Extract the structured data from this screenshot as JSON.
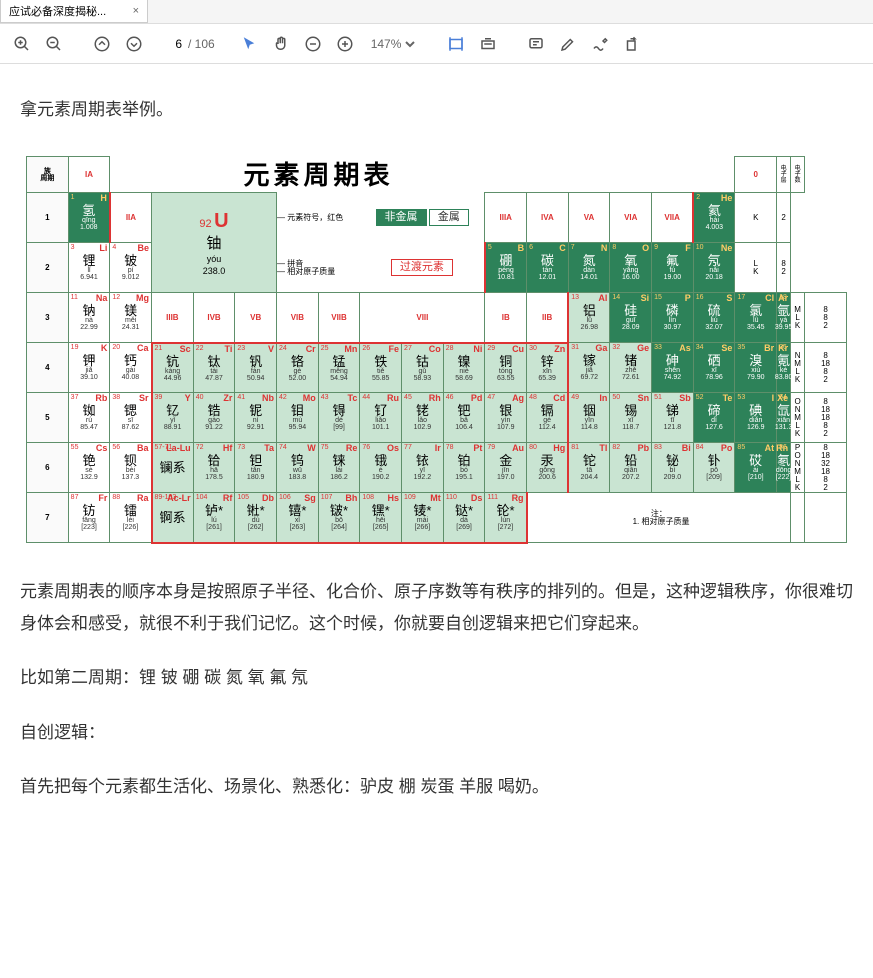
{
  "tab": {
    "title": "应试必备深度揭秘...",
    "close": "×"
  },
  "toolbar": {
    "page_current": "6",
    "page_total": "/ 106",
    "zoom": "147%"
  },
  "doc": {
    "p1": "拿元素周期表举例。",
    "p2": "元素周期表的顺序本身是按照原子半径、化合价、原子序数等有秩序的排列的。但是，这种逻辑秩序，你很难切身体会和感受，就很不利于我们记忆。这个时候，你就要自创逻辑来把它们穿起来。",
    "p3": "比如第二周期：锂 铍 硼 碳 氮 氧 氟 氖",
    "p4": "自创逻辑：",
    "p5": "首先把每个元素都生活化、场景化、熟悉化：驴皮 棚 炭蛋  羊服  喝奶。"
  },
  "ptable": {
    "title": "元素周期表",
    "groups_a": [
      "IA",
      "IIA",
      "IIIA",
      "IVA",
      "VA",
      "VIA",
      "VIIA"
    ],
    "groups_b": [
      "IIIB",
      "IVB",
      "VB",
      "VIB",
      "VIIB",
      "VIII",
      "IB",
      "IIB"
    ],
    "zero": "0",
    "sidehdr1": "电子层",
    "sidehdr2": "电子数",
    "periods": [
      "1",
      "2",
      "3",
      "4",
      "5",
      "6",
      "7"
    ],
    "phdr": "周期",
    "key": {
      "nonmetal": "非金属",
      "metal": "金属",
      "trans": "过渡元素"
    },
    "legend": {
      "atom": "原子",
      "num": "92",
      "sym": "U",
      "symred": "元素符号，红色",
      "elname": "元素名",
      "name": "铀",
      "nameanno": "称注*的是人造元素",
      "py": "yóu",
      "pyanno": "拼音",
      "mass": "238.0",
      "massanno": "相对原子质量"
    },
    "footnote": "注：\n1. 相对原子质量",
    "shells": {
      "1": "K 2",
      "2": "L K 8 2",
      "3": "M L K 8 8 2",
      "4": "N M L K 8 18 8 2",
      "5": "O N M L K 8 18 18 8 2",
      "6": "P O N M L K 8 18 32 18 8 2",
      "7": ""
    },
    "cells": {
      "H": {
        "n": "1",
        "s": "H",
        "nm": "氢",
        "py": "qīng",
        "m": "1.008",
        "c": "dark"
      },
      "He": {
        "n": "2",
        "s": "He",
        "nm": "氦",
        "py": "hài",
        "m": "4.003",
        "c": "dark"
      },
      "Li": {
        "n": "3",
        "s": "Li",
        "nm": "锂",
        "py": "lǐ",
        "m": "6.941",
        "c": "plain"
      },
      "Be": {
        "n": "4",
        "s": "Be",
        "nm": "铍",
        "py": "pí",
        "m": "9.012",
        "c": "plain"
      },
      "B": {
        "n": "5",
        "s": "B",
        "nm": "硼",
        "py": "péng",
        "m": "10.81",
        "c": "dark"
      },
      "C": {
        "n": "6",
        "s": "C",
        "nm": "碳",
        "py": "tàn",
        "m": "12.01",
        "c": "dark"
      },
      "N": {
        "n": "7",
        "s": "N",
        "nm": "氮",
        "py": "dàn",
        "m": "14.01",
        "c": "dark"
      },
      "O": {
        "n": "8",
        "s": "O",
        "nm": "氧",
        "py": "yǎng",
        "m": "16.00",
        "c": "dark"
      },
      "F": {
        "n": "9",
        "s": "F",
        "nm": "氟",
        "py": "fú",
        "m": "19.00",
        "c": "dark"
      },
      "Ne": {
        "n": "10",
        "s": "Ne",
        "nm": "氖",
        "py": "nǎi",
        "m": "20.18",
        "c": "dark"
      },
      "Na": {
        "n": "11",
        "s": "Na",
        "nm": "钠",
        "py": "nà",
        "m": "22.99",
        "c": "plain"
      },
      "Mg": {
        "n": "12",
        "s": "Mg",
        "nm": "镁",
        "py": "měi",
        "m": "24.31",
        "c": "plain"
      },
      "Al": {
        "n": "13",
        "s": "Al",
        "nm": "铝",
        "py": "lǚ",
        "m": "26.98",
        "c": "light"
      },
      "Si": {
        "n": "14",
        "s": "Si",
        "nm": "硅",
        "py": "guī",
        "m": "28.09",
        "c": "dark"
      },
      "P": {
        "n": "15",
        "s": "P",
        "nm": "磷",
        "py": "lín",
        "m": "30.97",
        "c": "dark"
      },
      "S": {
        "n": "16",
        "s": "S",
        "nm": "硫",
        "py": "liú",
        "m": "32.07",
        "c": "dark"
      },
      "Cl": {
        "n": "17",
        "s": "Cl",
        "nm": "氯",
        "py": "lǜ",
        "m": "35.45",
        "c": "dark"
      },
      "Ar": {
        "n": "18",
        "s": "Ar",
        "nm": "氩",
        "py": "yà",
        "m": "39.95",
        "c": "dark"
      },
      "K": {
        "n": "19",
        "s": "K",
        "nm": "钾",
        "py": "jiǎ",
        "m": "39.10",
        "c": "plain"
      },
      "Ca": {
        "n": "20",
        "s": "Ca",
        "nm": "钙",
        "py": "gài",
        "m": "40.08",
        "c": "plain"
      },
      "Sc": {
        "n": "21",
        "s": "Sc",
        "nm": "钪",
        "py": "kàng",
        "m": "44.96",
        "c": "light"
      },
      "Ti": {
        "n": "22",
        "s": "Ti",
        "nm": "钛",
        "py": "tài",
        "m": "47.87",
        "c": "light"
      },
      "V": {
        "n": "23",
        "s": "V",
        "nm": "钒",
        "py": "fán",
        "m": "50.94",
        "c": "light"
      },
      "Cr": {
        "n": "24",
        "s": "Cr",
        "nm": "铬",
        "py": "gè",
        "m": "52.00",
        "c": "light"
      },
      "Mn": {
        "n": "25",
        "s": "Mn",
        "nm": "锰",
        "py": "měng",
        "m": "54.94",
        "c": "light"
      },
      "Fe": {
        "n": "26",
        "s": "Fe",
        "nm": "铁",
        "py": "tiě",
        "m": "55.85",
        "c": "light"
      },
      "Co": {
        "n": "27",
        "s": "Co",
        "nm": "钴",
        "py": "gǔ",
        "m": "58.93",
        "c": "light"
      },
      "Ni": {
        "n": "28",
        "s": "Ni",
        "nm": "镍",
        "py": "niè",
        "m": "58.69",
        "c": "light"
      },
      "Cu": {
        "n": "29",
        "s": "Cu",
        "nm": "铜",
        "py": "tóng",
        "m": "63.55",
        "c": "light"
      },
      "Zn": {
        "n": "30",
        "s": "Zn",
        "nm": "锌",
        "py": "xīn",
        "m": "65.39",
        "c": "light"
      },
      "Ga": {
        "n": "31",
        "s": "Ga",
        "nm": "镓",
        "py": "jiā",
        "m": "69.72",
        "c": "light"
      },
      "Ge": {
        "n": "32",
        "s": "Ge",
        "nm": "锗",
        "py": "zhě",
        "m": "72.61",
        "c": "light"
      },
      "As": {
        "n": "33",
        "s": "As",
        "nm": "砷",
        "py": "shēn",
        "m": "74.92",
        "c": "dark"
      },
      "Se": {
        "n": "34",
        "s": "Se",
        "nm": "硒",
        "py": "xī",
        "m": "78.96",
        "c": "dark"
      },
      "Br": {
        "n": "35",
        "s": "Br",
        "nm": "溴",
        "py": "xiù",
        "m": "79.90",
        "c": "dark"
      },
      "Kr": {
        "n": "36",
        "s": "Kr",
        "nm": "氪",
        "py": "kè",
        "m": "83.80",
        "c": "dark"
      },
      "Rb": {
        "n": "37",
        "s": "Rb",
        "nm": "铷",
        "py": "rú",
        "m": "85.47",
        "c": "plain"
      },
      "Sr": {
        "n": "38",
        "s": "Sr",
        "nm": "锶",
        "py": "sī",
        "m": "87.62",
        "c": "plain"
      },
      "Y": {
        "n": "39",
        "s": "Y",
        "nm": "钇",
        "py": "yǐ",
        "m": "88.91",
        "c": "light"
      },
      "Zr": {
        "n": "40",
        "s": "Zr",
        "nm": "锆",
        "py": "gào",
        "m": "91.22",
        "c": "light"
      },
      "Nb": {
        "n": "41",
        "s": "Nb",
        "nm": "铌",
        "py": "ní",
        "m": "92.91",
        "c": "light"
      },
      "Mo": {
        "n": "42",
        "s": "Mo",
        "nm": "钼",
        "py": "mù",
        "m": "95.94",
        "c": "light"
      },
      "Tc": {
        "n": "43",
        "s": "Tc",
        "nm": "锝",
        "py": "dé",
        "m": "[99]",
        "c": "light"
      },
      "Ru": {
        "n": "44",
        "s": "Ru",
        "nm": "钌",
        "py": "liǎo",
        "m": "101.1",
        "c": "light"
      },
      "Rh": {
        "n": "45",
        "s": "Rh",
        "nm": "铑",
        "py": "lǎo",
        "m": "102.9",
        "c": "light"
      },
      "Pd": {
        "n": "46",
        "s": "Pd",
        "nm": "钯",
        "py": "bǎ",
        "m": "106.4",
        "c": "light"
      },
      "Ag": {
        "n": "47",
        "s": "Ag",
        "nm": "银",
        "py": "yín",
        "m": "107.9",
        "c": "light"
      },
      "Cd": {
        "n": "48",
        "s": "Cd",
        "nm": "镉",
        "py": "gé",
        "m": "112.4",
        "c": "light"
      },
      "In": {
        "n": "49",
        "s": "In",
        "nm": "铟",
        "py": "yīn",
        "m": "114.8",
        "c": "light"
      },
      "Sn": {
        "n": "50",
        "s": "Sn",
        "nm": "锡",
        "py": "xī",
        "m": "118.7",
        "c": "light"
      },
      "Sb": {
        "n": "51",
        "s": "Sb",
        "nm": "锑",
        "py": "tī",
        "m": "121.8",
        "c": "light"
      },
      "Te": {
        "n": "52",
        "s": "Te",
        "nm": "碲",
        "py": "dì",
        "m": "127.6",
        "c": "dark"
      },
      "I": {
        "n": "53",
        "s": "I",
        "nm": "碘",
        "py": "diǎn",
        "m": "126.9",
        "c": "dark"
      },
      "Xe": {
        "n": "54",
        "s": "Xe",
        "nm": "氙",
        "py": "xiān",
        "m": "131.3",
        "c": "dark"
      },
      "Cs": {
        "n": "55",
        "s": "Cs",
        "nm": "铯",
        "py": "sè",
        "m": "132.9",
        "c": "plain"
      },
      "Ba": {
        "n": "56",
        "s": "Ba",
        "nm": "钡",
        "py": "bèi",
        "m": "137.3",
        "c": "plain"
      },
      "LaLu": {
        "n": "57-71",
        "s": "La-Lu",
        "nm": "镧系",
        "py": "",
        "m": "",
        "c": "light"
      },
      "Hf": {
        "n": "72",
        "s": "Hf",
        "nm": "铪",
        "py": "hā",
        "m": "178.5",
        "c": "light"
      },
      "Ta": {
        "n": "73",
        "s": "Ta",
        "nm": "钽",
        "py": "tǎn",
        "m": "180.9",
        "c": "light"
      },
      "W": {
        "n": "74",
        "s": "W",
        "nm": "钨",
        "py": "wū",
        "m": "183.8",
        "c": "light"
      },
      "Re": {
        "n": "75",
        "s": "Re",
        "nm": "铼",
        "py": "lái",
        "m": "186.2",
        "c": "light"
      },
      "Os": {
        "n": "76",
        "s": "Os",
        "nm": "锇",
        "py": "é",
        "m": "190.2",
        "c": "light"
      },
      "Ir": {
        "n": "77",
        "s": "Ir",
        "nm": "铱",
        "py": "yī",
        "m": "192.2",
        "c": "light"
      },
      "Pt": {
        "n": "78",
        "s": "Pt",
        "nm": "铂",
        "py": "bó",
        "m": "195.1",
        "c": "light"
      },
      "Au": {
        "n": "79",
        "s": "Au",
        "nm": "金",
        "py": "jīn",
        "m": "197.0",
        "c": "light"
      },
      "Hg": {
        "n": "80",
        "s": "Hg",
        "nm": "汞",
        "py": "gǒng",
        "m": "200.6",
        "c": "light"
      },
      "Tl": {
        "n": "81",
        "s": "Tl",
        "nm": "铊",
        "py": "tā",
        "m": "204.4",
        "c": "light"
      },
      "Pb": {
        "n": "82",
        "s": "Pb",
        "nm": "铅",
        "py": "qiān",
        "m": "207.2",
        "c": "light"
      },
      "Bi": {
        "n": "83",
        "s": "Bi",
        "nm": "铋",
        "py": "bì",
        "m": "209.0",
        "c": "light"
      },
      "Po": {
        "n": "84",
        "s": "Po",
        "nm": "钋",
        "py": "pō",
        "m": "[209]",
        "c": "light"
      },
      "At": {
        "n": "85",
        "s": "At",
        "nm": "砹",
        "py": "ài",
        "m": "[210]",
        "c": "dark"
      },
      "Rn": {
        "n": "86",
        "s": "Rn",
        "nm": "氡",
        "py": "dōng",
        "m": "[222]",
        "c": "dark"
      },
      "Fr": {
        "n": "87",
        "s": "Fr",
        "nm": "钫",
        "py": "fāng",
        "m": "[223]",
        "c": "plain"
      },
      "Ra": {
        "n": "88",
        "s": "Ra",
        "nm": "镭",
        "py": "léi",
        "m": "[226]",
        "c": "plain"
      },
      "AcLr": {
        "n": "89-103",
        "s": "Ac-Lr",
        "nm": "锕系",
        "py": "",
        "m": "",
        "c": "light"
      },
      "Rf": {
        "n": "104",
        "s": "Rf",
        "nm": "𬬻*",
        "py": "lú",
        "m": "[261]",
        "c": "light"
      },
      "Db": {
        "n": "105",
        "s": "Db",
        "nm": "𬭊*",
        "py": "dù",
        "m": "[262]",
        "c": "light"
      },
      "Sg": {
        "n": "106",
        "s": "Sg",
        "nm": "𬭳*",
        "py": "xǐ",
        "m": "[263]",
        "c": "light"
      },
      "Bh": {
        "n": "107",
        "s": "Bh",
        "nm": "𬭛*",
        "py": "bō",
        "m": "[264]",
        "c": "light"
      },
      "Hs": {
        "n": "108",
        "s": "Hs",
        "nm": "𬭶*",
        "py": "hēi",
        "m": "[265]",
        "c": "light"
      },
      "Mt": {
        "n": "109",
        "s": "Mt",
        "nm": "鿏*",
        "py": "mài",
        "m": "[266]",
        "c": "light"
      },
      "Ds": {
        "n": "110",
        "s": "Ds",
        "nm": "𫟼*",
        "py": "dá",
        "m": "[269]",
        "c": "light"
      },
      "Rg": {
        "n": "111",
        "s": "Rg",
        "nm": "𬬭*",
        "py": "lún",
        "m": "[272]",
        "c": "light"
      }
    }
  }
}
